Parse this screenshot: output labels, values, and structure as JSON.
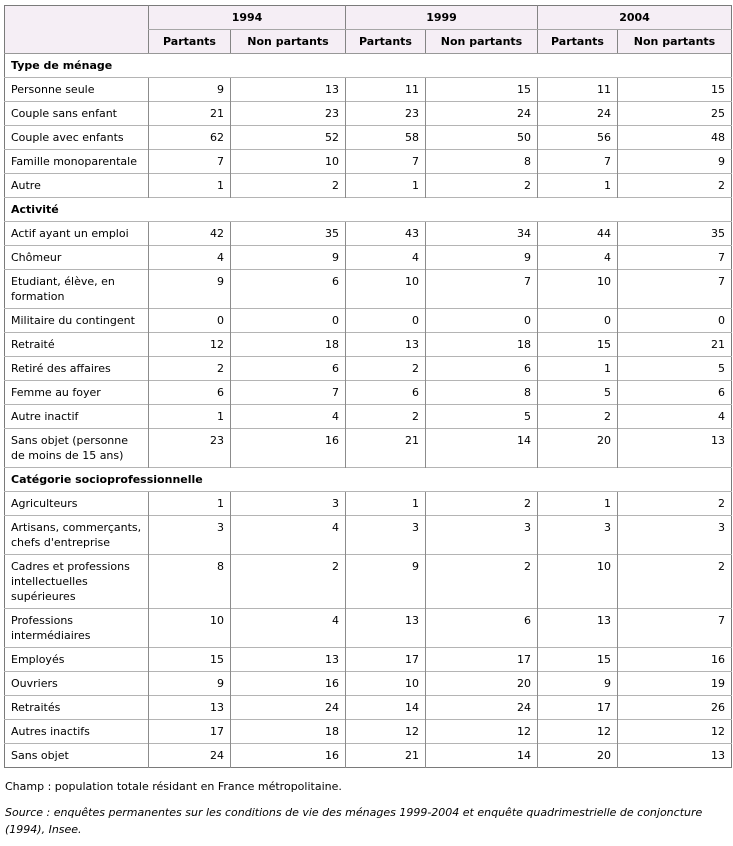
{
  "table": {
    "header": {
      "year_groups": [
        {
          "year": "1994",
          "subcolumns": [
            "Partants",
            "Non partants"
          ]
        },
        {
          "year": "1999",
          "subcolumns": [
            "Partants",
            "Non partants"
          ]
        },
        {
          "year": "2004",
          "subcolumns": [
            "Partants",
            "Non partants"
          ]
        }
      ]
    },
    "sections": [
      {
        "title": "Type de ménage",
        "rows": [
          {
            "label": "Personne seule",
            "values": [
              9,
              13,
              11,
              15,
              11,
              15
            ]
          },
          {
            "label": "Couple sans enfant",
            "values": [
              21,
              23,
              23,
              24,
              24,
              25
            ]
          },
          {
            "label": "Couple avec enfants",
            "values": [
              62,
              52,
              58,
              50,
              56,
              48
            ]
          },
          {
            "label": "Famille monoparentale",
            "values": [
              7,
              10,
              7,
              8,
              7,
              9
            ]
          },
          {
            "label": "Autre",
            "values": [
              1,
              2,
              1,
              2,
              1,
              2
            ]
          }
        ]
      },
      {
        "title": "Activité",
        "rows": [
          {
            "label": "Actif ayant un emploi",
            "values": [
              42,
              35,
              43,
              34,
              44,
              35
            ]
          },
          {
            "label": "Chômeur",
            "values": [
              4,
              9,
              4,
              9,
              4,
              7
            ]
          },
          {
            "label": "Etudiant, élève, en\nformation",
            "values": [
              9,
              6,
              10,
              7,
              10,
              7
            ]
          },
          {
            "label": "Militaire du contingent",
            "values": [
              0,
              0,
              0,
              0,
              0,
              0
            ]
          },
          {
            "label": "Retraité",
            "values": [
              12,
              18,
              13,
              18,
              15,
              21
            ]
          },
          {
            "label": "Retiré des affaires",
            "values": [
              2,
              6,
              2,
              6,
              1,
              5
            ]
          },
          {
            "label": "Femme au foyer",
            "values": [
              6,
              7,
              6,
              8,
              5,
              6
            ]
          },
          {
            "label": "Autre inactif",
            "values": [
              1,
              4,
              2,
              5,
              2,
              4
            ]
          },
          {
            "label": "Sans objet (personne\nde moins de 15 ans)",
            "values": [
              23,
              16,
              21,
              14,
              20,
              13
            ]
          }
        ]
      },
      {
        "title": "Catégorie socioprofessionnelle",
        "rows": [
          {
            "label": "Agriculteurs",
            "values": [
              1,
              3,
              1,
              2,
              1,
              2
            ]
          },
          {
            "label": "Artisans, commerçants,\nchefs d'entreprise",
            "values": [
              3,
              4,
              3,
              3,
              3,
              3
            ]
          },
          {
            "label": "Cadres et professions\nintellectuelles\nsupérieures",
            "values": [
              8,
              2,
              9,
              2,
              10,
              2
            ]
          },
          {
            "label": "Professions\nintermédiaires",
            "values": [
              10,
              4,
              13,
              6,
              13,
              7
            ]
          },
          {
            "label": "Employés",
            "values": [
              15,
              13,
              17,
              17,
              15,
              16
            ]
          },
          {
            "label": "Ouvriers",
            "values": [
              9,
              16,
              10,
              20,
              9,
              19
            ]
          },
          {
            "label": "Retraités",
            "values": [
              13,
              24,
              14,
              24,
              17,
              26
            ]
          },
          {
            "label": "Autres inactifs",
            "values": [
              17,
              18,
              12,
              12,
              12,
              12
            ]
          },
          {
            "label": "Sans objet",
            "values": [
              24,
              16,
              21,
              14,
              20,
              13
            ]
          }
        ]
      }
    ]
  },
  "notes": {
    "champ": "Champ : population totale résidant en France métropolitaine.",
    "source": "Source : enquêtes permanentes sur les conditions de vie des ménages 1999-2004 et enquête quadrimestrielle de conjoncture (1994), Insee."
  },
  "colors": {
    "header_background": "#f5eef5",
    "outer_border": "#7a7a7a",
    "vertical_border": "#8c8c8c",
    "horizontal_border": "#b4b4b4",
    "text": "#000000"
  }
}
